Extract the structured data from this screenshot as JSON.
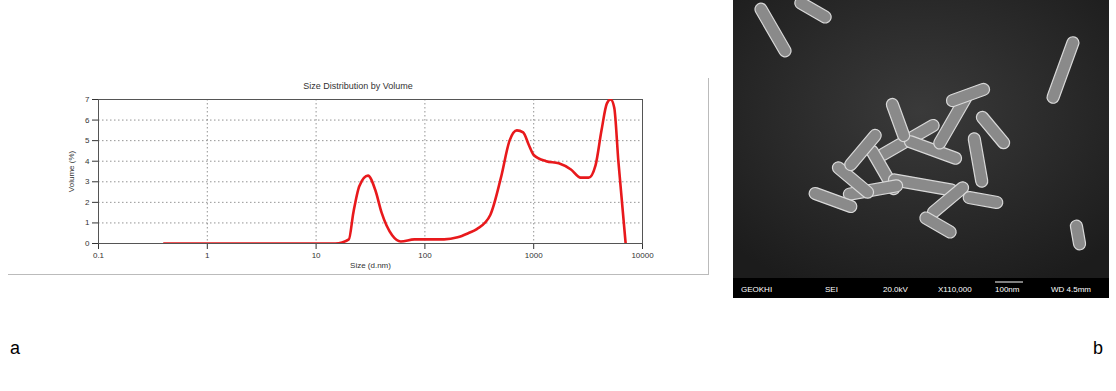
{
  "chart_data": {
    "type": "line",
    "title": "Size Distribution by Volume",
    "x_label": "Size (d.nm)",
    "y_label": "Volume (%)",
    "log": "x",
    "grid": true,
    "x": [
      0.4,
      15,
      20,
      22,
      25,
      30,
      35,
      40,
      50,
      60,
      80,
      100,
      150,
      200,
      250,
      300,
      400,
      500,
      600,
      700,
      800,
      900,
      1000,
      1300,
      1700,
      2200,
      2700,
      3200,
      3700,
      4200,
      4700,
      5100,
      5500,
      6000,
      7000
    ],
    "series": [
      {
        "name": "Volume",
        "color": "#e8191c",
        "values": [
          0,
          0,
          0.2,
          1.5,
          2.8,
          3.3,
          2.6,
          1.5,
          0.4,
          0.1,
          0.2,
          0.2,
          0.2,
          0.3,
          0.5,
          0.7,
          1.4,
          3.2,
          5.0,
          5.5,
          5.4,
          4.8,
          4.3,
          4.0,
          3.9,
          3.6,
          3.2,
          3.2,
          3.8,
          5.5,
          6.8,
          7.0,
          6.6,
          4.0,
          0
        ]
      }
    ],
    "xlim": [
      0.1,
      10000
    ],
    "xticks": [
      0.1,
      1,
      10,
      100,
      1000,
      10000
    ],
    "ylim": [
      0,
      7
    ],
    "yticks": [
      0,
      1,
      2,
      3,
      4,
      5,
      6,
      7
    ]
  },
  "panel_labels": [
    "a",
    "b"
  ],
  "micrograph": {
    "info_bar": [
      "GEOKHI",
      "SEI",
      "20.0kV",
      "X110,000",
      "100nm",
      "WD 4.5mm"
    ]
  }
}
